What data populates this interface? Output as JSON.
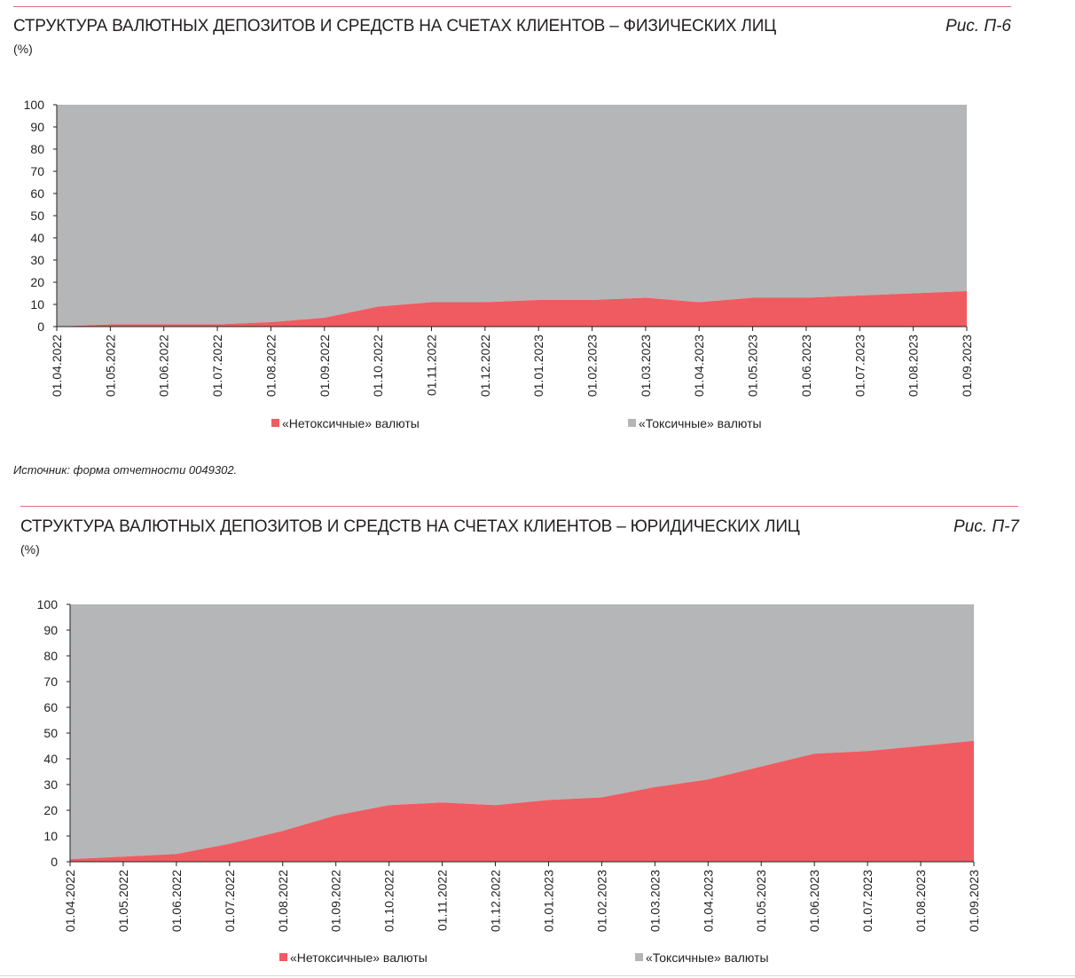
{
  "colors": {
    "nontoxic": "#ef5b60",
    "toxic": "#b5b6b8",
    "rule": "#e0707a",
    "axis": "#231f20"
  },
  "figures": [
    {
      "title": "СТРУКТУРА ВАЛЮТНЫХ ДЕПОЗИТОВ И СРЕДСТВ НА СЧЕТАХ КЛИЕНТОВ – ФИЗИЧЕСКИХ ЛИЦ",
      "fig_label": "Рис. П-6",
      "unit": "(%)",
      "source": "Источник: форма отчетности 0049302."
    },
    {
      "title": "СТРУКТУРА ВАЛЮТНЫХ ДЕПОЗИТОВ И СРЕДСТВ НА СЧЕТАХ КЛИЕНТОВ – ЮРИДИЧЕСКИХ ЛИЦ",
      "fig_label": "Рис. П-7",
      "unit": "(%)",
      "source": ""
    }
  ],
  "chart_data": [
    {
      "type": "area",
      "stacked": true,
      "title": "СТРУКТУРА ВАЛЮТНЫХ ДЕПОЗИТОВ И СРЕДСТВ НА СЧЕТАХ КЛИЕНТОВ – ФИЗИЧЕСКИХ ЛИЦ",
      "ylabel": "(%)",
      "ylim": [
        0,
        100
      ],
      "yticks": [
        0,
        10,
        20,
        30,
        40,
        50,
        60,
        70,
        80,
        90,
        100
      ],
      "categories": [
        "01.04.2022",
        "01.05.2022",
        "01.06.2022",
        "01.07.2022",
        "01.08.2022",
        "01.09.2022",
        "01.10.2022",
        "01.11.2022",
        "01.12.2022",
        "01.01.2023",
        "01.02.2023",
        "01.03.2023",
        "01.04.2023",
        "01.05.2023",
        "01.06.2023",
        "01.07.2023",
        "01.08.2023",
        "01.09.2023"
      ],
      "series": [
        {
          "name": "«Нетоксичные» валюты",
          "values": [
            0,
            1,
            1,
            1,
            2,
            4,
            9,
            11,
            11,
            12,
            12,
            13,
            11,
            13,
            13,
            14,
            15,
            16
          ]
        },
        {
          "name": "«Токсичные» валюты",
          "values": [
            100,
            99,
            99,
            99,
            98,
            96,
            91,
            89,
            89,
            88,
            88,
            87,
            89,
            87,
            87,
            86,
            85,
            84
          ]
        }
      ],
      "legend_position": "bottom",
      "grid": false
    },
    {
      "type": "area",
      "stacked": true,
      "title": "СТРУКТУРА ВАЛЮТНЫХ ДЕПОЗИТОВ И СРЕДСТВ НА СЧЕТАХ КЛИЕНТОВ – ЮРИДИЧЕСКИХ ЛИЦ",
      "ylabel": "(%)",
      "ylim": [
        0,
        100
      ],
      "yticks": [
        0,
        10,
        20,
        30,
        40,
        50,
        60,
        70,
        80,
        90,
        100
      ],
      "categories": [
        "01.04.2022",
        "01.05.2022",
        "01.06.2022",
        "01.07.2022",
        "01.08.2022",
        "01.09.2022",
        "01.10.2022",
        "01.11.2022",
        "01.12.2022",
        "01.01.2023",
        "01.02.2023",
        "01.03.2023",
        "01.04.2023",
        "01.05.2023",
        "01.06.2023",
        "01.07.2023",
        "01.08.2023",
        "01.09.2023"
      ],
      "series": [
        {
          "name": "«Нетоксичные» валюты",
          "values": [
            1,
            2,
            3,
            7,
            12,
            18,
            22,
            23,
            22,
            24,
            25,
            29,
            32,
            37,
            42,
            43,
            45,
            47
          ]
        },
        {
          "name": "«Токсичные» валюты",
          "values": [
            99,
            98,
            97,
            93,
            88,
            82,
            78,
            77,
            78,
            76,
            75,
            71,
            68,
            63,
            58,
            57,
            55,
            53
          ]
        }
      ],
      "legend_position": "bottom",
      "grid": false
    }
  ]
}
